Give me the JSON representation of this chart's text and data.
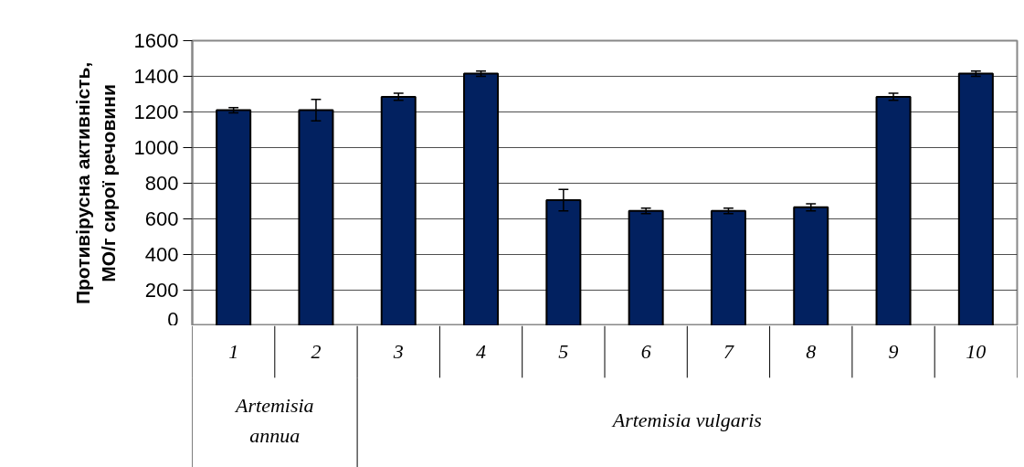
{
  "chart_data": {
    "type": "bar",
    "ylabel": "Противірусна активність,\nМО/г сирої речовини",
    "categories": [
      "1",
      "2",
      "3",
      "4",
      "5",
      "6",
      "7",
      "8",
      "9",
      "10"
    ],
    "values": [
      1210,
      1210,
      1285,
      1415,
      705,
      645,
      645,
      665,
      1285,
      1415
    ],
    "errors": [
      15,
      60,
      20,
      15,
      60,
      15,
      15,
      20,
      20,
      15
    ],
    "color": "#022160",
    "ylim": [
      0,
      1600
    ],
    "yticks": [
      0,
      200,
      400,
      600,
      800,
      1000,
      1200,
      1400,
      1600
    ],
    "grid": "y",
    "annotations": [
      "Artemisia annua",
      "Artemisia vulgaris"
    ]
  }
}
